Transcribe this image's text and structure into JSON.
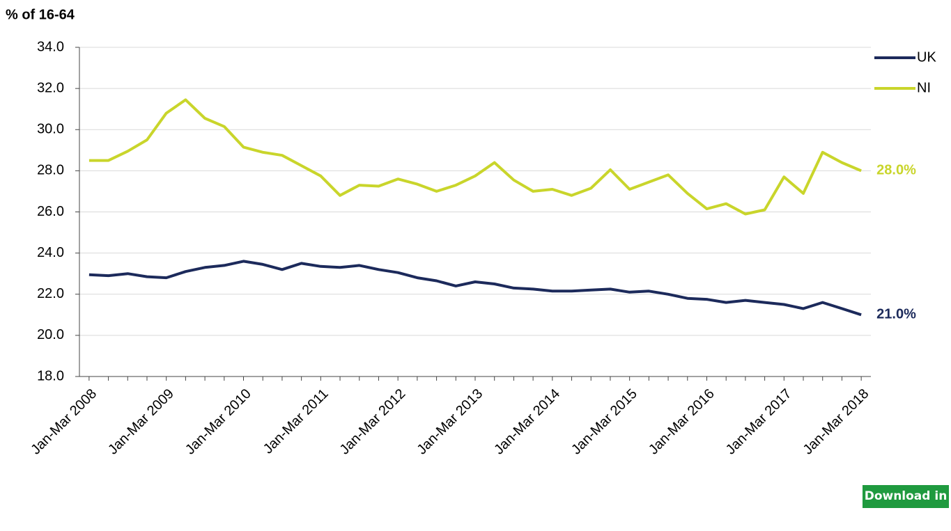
{
  "chart_data": {
    "type": "line",
    "y_label": "% of 16-64",
    "categories": [
      "Jan-Mar 2008",
      null,
      null,
      null,
      "Jan-Mar 2009",
      null,
      null,
      null,
      "Jan-Mar 2010",
      null,
      null,
      null,
      "Jan-Mar 2011",
      null,
      null,
      null,
      "Jan-Mar 2012",
      null,
      null,
      null,
      "Jan-Mar 2013",
      null,
      null,
      null,
      "Jan-Mar 2014",
      null,
      null,
      null,
      "Jan-Mar 2015",
      null,
      null,
      null,
      "Jan-Mar 2016",
      null,
      null,
      null,
      "Jan-Mar 2017",
      null,
      null,
      null,
      "Jan-Mar 2018"
    ],
    "series": [
      {
        "name": "UK",
        "color": "#1c2a5b",
        "values": [
          22.95,
          22.9,
          23.0,
          22.85,
          22.8,
          23.1,
          23.3,
          23.4,
          23.6,
          23.45,
          23.2,
          23.5,
          23.35,
          23.3,
          23.4,
          23.2,
          23.05,
          22.8,
          22.65,
          22.4,
          22.6,
          22.5,
          22.3,
          22.25,
          22.15,
          22.15,
          22.2,
          22.25,
          22.1,
          22.15,
          22.0,
          21.8,
          21.75,
          21.6,
          21.7,
          21.6,
          21.5,
          21.3,
          21.6,
          21.3,
          21.0
        ],
        "value_labels": [
          null,
          null,
          null,
          null,
          null,
          null,
          null,
          null,
          null,
          null,
          null,
          null,
          null,
          null,
          null,
          null,
          null,
          null,
          null,
          null,
          null,
          null,
          null,
          null,
          null,
          null,
          null,
          null,
          null,
          null,
          null,
          null,
          null,
          null,
          null,
          null,
          null,
          null,
          null,
          null,
          "21.0%"
        ]
      },
      {
        "name": "NI",
        "color": "#c9d52b",
        "values": [
          28.5,
          28.5,
          28.95,
          29.5,
          30.8,
          31.45,
          30.55,
          30.15,
          29.15,
          28.9,
          28.75,
          28.25,
          27.75,
          26.8,
          27.3,
          27.25,
          27.6,
          27.35,
          27.0,
          27.3,
          27.75,
          28.4,
          27.55,
          27.0,
          27.1,
          26.8,
          27.15,
          28.05,
          27.1,
          27.45,
          27.8,
          26.9,
          26.15,
          26.4,
          25.9,
          26.1,
          27.7,
          26.9,
          28.9,
          28.4,
          28.0
        ],
        "value_labels": [
          null,
          null,
          null,
          null,
          null,
          null,
          null,
          null,
          null,
          null,
          null,
          null,
          null,
          null,
          null,
          null,
          null,
          null,
          null,
          null,
          null,
          null,
          null,
          null,
          null,
          null,
          null,
          null,
          null,
          null,
          null,
          null,
          null,
          null,
          null,
          null,
          null,
          null,
          null,
          null,
          "28.0%"
        ]
      }
    ],
    "ylim": [
      18,
      34
    ],
    "yticks": [
      {
        "value": 18,
        "label": "18.0"
      },
      {
        "value": 20,
        "label": "20.0"
      },
      {
        "value": 22,
        "label": "22.0"
      },
      {
        "value": 24,
        "label": "24.0"
      },
      {
        "value": 26,
        "label": "26.0"
      },
      {
        "value": 28,
        "label": "28.0"
      },
      {
        "value": 30,
        "label": "30.0"
      },
      {
        "value": 32,
        "label": "32.0"
      },
      {
        "value": 34,
        "label": "34.0"
      }
    ],
    "grid": true,
    "legend": "top-right"
  },
  "button": "Download in excel"
}
